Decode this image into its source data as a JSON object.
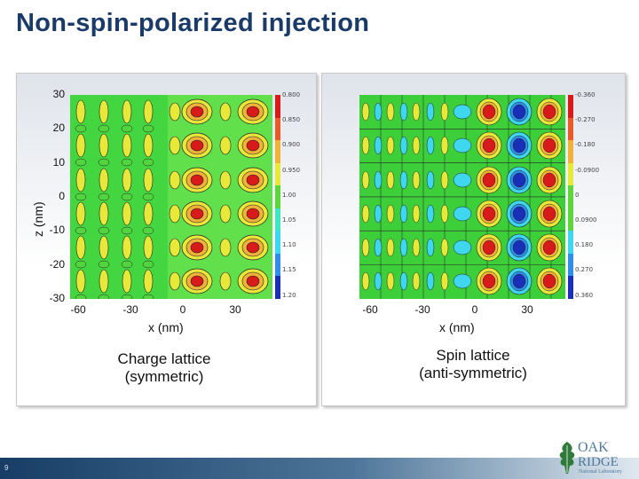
{
  "title": "Non-spin-polarized injection",
  "page_number": "9",
  "left_panel": {
    "caption": "Charge lattice\n(symmetric)",
    "xlabel": "x (nm)",
    "ylabel": "z (nm)",
    "xticks": [
      "-60",
      "-30",
      "0",
      "30"
    ],
    "yticks": [
      "30",
      "20",
      "10",
      "0",
      "-10",
      "-20",
      "-30"
    ],
    "colorbar": [
      "0.800",
      "0.850",
      "0.900",
      "0.950",
      "1.00",
      "1.05",
      "1.10",
      "1.15",
      "1.20"
    ]
  },
  "right_panel": {
    "caption": "Spin lattice\n(anti-symmetric)",
    "xlabel": "x (nm)",
    "xticks": [
      "-60",
      "-30",
      "0",
      "30"
    ],
    "colorbar": [
      "-0.360",
      "-0.270",
      "-0.180",
      "-0.0900",
      "0",
      "0.0900",
      "0.180",
      "0.270",
      "0.360"
    ]
  },
  "logo": {
    "line1": "OAK",
    "line2": "RIDGE",
    "line3": "National Laboratory"
  },
  "colors": {
    "title": "#1a3a68",
    "colorbar_left": [
      "#1a2fb8",
      "#2f8fe8",
      "#3fd6f0",
      "#3fe6c0",
      "#5cd63a",
      "#e8e83a",
      "#f0b23a",
      "#e85a2a",
      "#d81a1a"
    ],
    "colorbar_right": [
      "#1a2fb8",
      "#2f8fe8",
      "#3fd6f0",
      "#5cd63a",
      "#5cd63a",
      "#e8e83a",
      "#f0b23a",
      "#e85a2a",
      "#d81a1a"
    ]
  }
}
